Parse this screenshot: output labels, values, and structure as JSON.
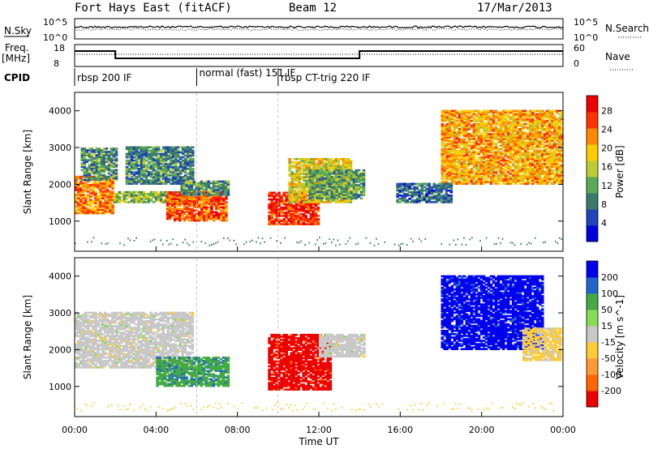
{
  "header": {
    "station": "Fort Hays East (fitACF)",
    "beam": "Beam 12",
    "date": "17/Mar/2013"
  },
  "status_panels": {
    "nsky_label": "N.Sky",
    "nsky_ticks": [
      "10^5",
      "10^0"
    ],
    "nsearch_label": "N.Search",
    "nsearch_ticks": [
      "10^5",
      "10^0"
    ],
    "freq_label_line1": "Freq.",
    "freq_label_line2": "[MHz]",
    "freq_ticks": [
      "18",
      "8"
    ],
    "nave_label": "Nave",
    "nave_ticks": [
      "60",
      "0"
    ],
    "cpid_label": "CPID",
    "cpid_segments": [
      {
        "label": "rbsp 200 IF",
        "start_hour": 0
      },
      {
        "label": "normal (fast) 151 IF",
        "start_hour": 6
      },
      {
        "label": "rbsp CT-trig 220 IF",
        "start_hour": 10
      }
    ]
  },
  "chart_data": [
    {
      "type": "heatmap",
      "name": "power",
      "xlabel": "",
      "ylabel": "Slant Range [km]",
      "xlim": [
        0,
        24
      ],
      "ylim": [
        180,
        4500
      ],
      "yticks": [
        1000,
        2000,
        3000,
        4000
      ],
      "colorbar": {
        "label": "Power [dB]",
        "ticks": [
          "4",
          "8",
          "12",
          "16",
          "20",
          "24",
          "28"
        ],
        "range": [
          0,
          30
        ],
        "colors": [
          "#0000dd",
          "#2244bb",
          "#3a7a6a",
          "#5aaa55",
          "#bbcc33",
          "#ffcc00",
          "#ff8800",
          "#ff3300",
          "#ee0000"
        ]
      },
      "regions": [
        {
          "t0": 0.0,
          "t1": 1.9,
          "r0": 1200,
          "r1": 2200,
          "v": 22
        },
        {
          "t0": 0.3,
          "t1": 2.0,
          "r0": 2100,
          "r1": 3000,
          "v": 10
        },
        {
          "t0": 1.9,
          "t1": 5.8,
          "r0": 1500,
          "r1": 1800,
          "v": 13
        },
        {
          "t0": 2.5,
          "t1": 5.8,
          "r0": 2000,
          "r1": 3000,
          "v": 9
        },
        {
          "t0": 4.5,
          "t1": 7.5,
          "r0": 1000,
          "r1": 1800,
          "v": 24
        },
        {
          "t0": 5.2,
          "t1": 7.6,
          "r0": 1700,
          "r1": 2100,
          "v": 10
        },
        {
          "t0": 9.5,
          "t1": 12.0,
          "r0": 900,
          "r1": 1800,
          "v": 26
        },
        {
          "t0": 10.5,
          "t1": 13.5,
          "r0": 1500,
          "r1": 2700,
          "v": 17
        },
        {
          "t0": 11.5,
          "t1": 14.2,
          "r0": 1600,
          "r1": 2400,
          "v": 11
        },
        {
          "t0": 18.0,
          "t1": 23.9,
          "r0": 2000,
          "r1": 4000,
          "v": 20
        },
        {
          "t0": 15.8,
          "t1": 18.5,
          "r0": 1500,
          "r1": 2000,
          "v": 7
        }
      ]
    },
    {
      "type": "heatmap",
      "name": "velocity",
      "xlabel": "Time UT",
      "ylabel": "Slant Range [km]",
      "xlim": [
        0,
        24
      ],
      "ylim": [
        180,
        4500
      ],
      "yticks": [
        1000,
        2000,
        3000,
        4000
      ],
      "xticks": [
        "00:00",
        "04:00",
        "08:00",
        "12:00",
        "16:00",
        "20:00",
        "00:00"
      ],
      "colorbar": {
        "label": "Velocity [m s^-1]",
        "ticks": [
          "200",
          "100",
          "50",
          "15",
          "-15",
          "-50",
          "-100",
          "-200"
        ],
        "range": [
          -250,
          250
        ],
        "colors": [
          "#ee0000",
          "#ff6600",
          "#ff9933",
          "#ffcc33",
          "#c8c8c8",
          "#88dd55",
          "#44aa44",
          "#2266cc",
          "#0000ee"
        ]
      },
      "regions": [
        {
          "t0": 0.0,
          "t1": 2.0,
          "r0": 1500,
          "r1": 3000,
          "v": 0
        },
        {
          "t0": 2.0,
          "t1": 5.8,
          "r0": 1500,
          "r1": 3000,
          "v": 0
        },
        {
          "t0": 4.0,
          "t1": 7.5,
          "r0": 1000,
          "r1": 1800,
          "v": 120
        },
        {
          "t0": 9.5,
          "t1": 12.5,
          "r0": 900,
          "r1": 2400,
          "v": -220
        },
        {
          "t0": 12.0,
          "t1": 14.2,
          "r0": 1800,
          "r1": 2400,
          "v": 0
        },
        {
          "t0": 18.0,
          "t1": 23.0,
          "r0": 2000,
          "r1": 4000,
          "v": 220
        },
        {
          "t0": 22.0,
          "t1": 23.9,
          "r0": 1700,
          "r1": 2600,
          "v": -40
        }
      ]
    }
  ]
}
